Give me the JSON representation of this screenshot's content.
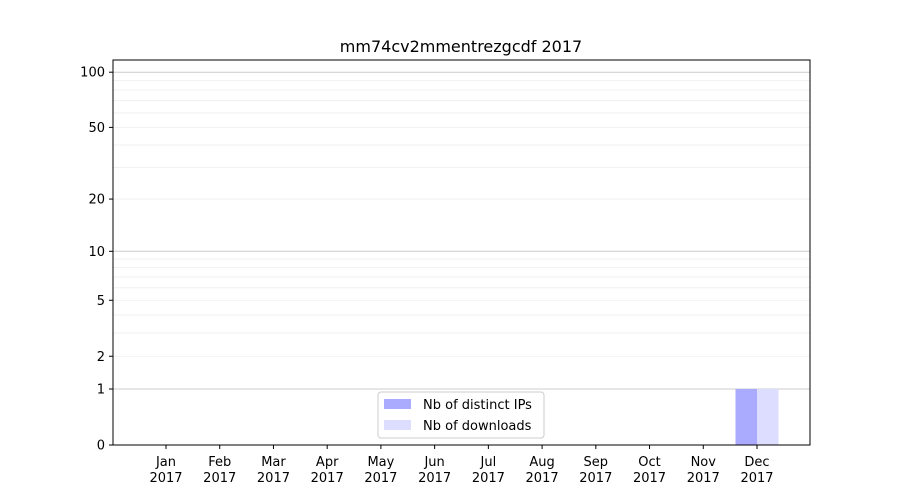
{
  "chart_data": {
    "type": "bar",
    "title": "mm74cv2mmentrezgcdf 2017",
    "xlabel": "",
    "ylabel": "",
    "categories": [
      "Jan\n2017",
      "Feb\n2017",
      "Mar\n2017",
      "Apr\n2017",
      "May\n2017",
      "Jun\n2017",
      "Jul\n2017",
      "Aug\n2017",
      "Sep\n2017",
      "Oct\n2017",
      "Nov\n2017",
      "Dec\n2017"
    ],
    "y_scale": "symlog",
    "ylim": [
      0,
      116
    ],
    "y_ticks": [
      0,
      1,
      2,
      5,
      10,
      20,
      50,
      100
    ],
    "grid": true,
    "legend_position": "bottom-center",
    "series": [
      {
        "name": "Nb of distinct IPs",
        "color": "#aaaaff",
        "values": [
          0,
          0,
          0,
          0,
          0,
          0,
          0,
          0,
          0,
          0,
          0,
          1
        ]
      },
      {
        "name": "Nb of downloads",
        "color": "#ddddff",
        "values": [
          0,
          0,
          0,
          0,
          0,
          0,
          0,
          0,
          0,
          0,
          0,
          1
        ]
      }
    ]
  }
}
